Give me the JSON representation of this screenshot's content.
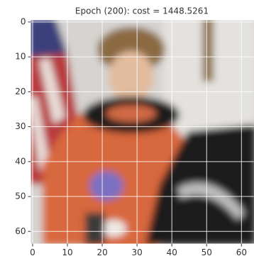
{
  "chart_data": {
    "type": "image",
    "title": "Epoch (200): cost = 1448.5261",
    "xlim": [
      -0.5,
      63.5
    ],
    "ylim": [
      63.5,
      -0.5
    ],
    "xticks": [
      0,
      10,
      20,
      30,
      40,
      50,
      60
    ],
    "yticks": [
      0,
      10,
      20,
      30,
      40,
      50,
      60
    ],
    "grid": true
  }
}
